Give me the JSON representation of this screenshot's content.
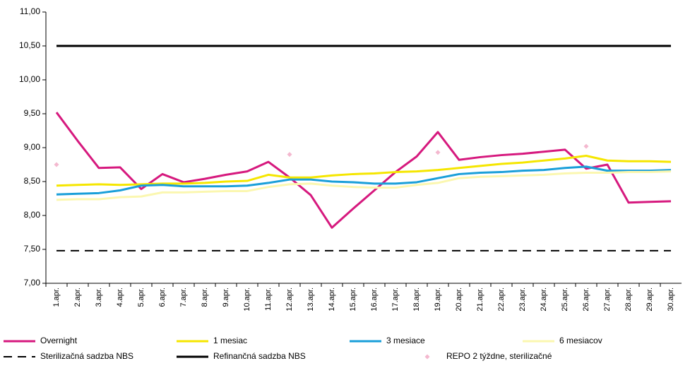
{
  "chart_data": {
    "type": "line",
    "categories": [
      "1.apr.",
      "2.apr.",
      "3.apr.",
      "4.apr.",
      "5.apr.",
      "6.apr.",
      "7.apr.",
      "8.apr.",
      "9.apr.",
      "10.apr.",
      "11.apr.",
      "12.apr.",
      "13.apr.",
      "14.apr.",
      "15.apr.",
      "16.apr.",
      "17.apr.",
      "18.apr.",
      "19.apr.",
      "20.apr.",
      "21.apr.",
      "22.apr.",
      "23.apr.",
      "24.apr.",
      "25.apr.",
      "26.apr.",
      "27.apr.",
      "28.apr.",
      "29.apr.",
      "30.apr."
    ],
    "ylim": [
      7,
      11
    ],
    "yticks": [
      {
        "value": 7,
        "label": "7,00"
      },
      {
        "value": 7.5,
        "label": "7,50"
      },
      {
        "value": 8,
        "label": "8,00"
      },
      {
        "value": 8.5,
        "label": "8,50"
      },
      {
        "value": 9,
        "label": "9,00"
      },
      {
        "value": 9.5,
        "label": "9,50"
      },
      {
        "value": 10,
        "label": "10,00"
      },
      {
        "value": 10.5,
        "label": "10,50"
      },
      {
        "value": 11,
        "label": "11,00"
      }
    ],
    "series": [
      {
        "name": "Overnight",
        "color": "#d6197e",
        "values": [
          9.52,
          9.1,
          8.7,
          8.71,
          8.39,
          8.61,
          8.49,
          8.54,
          8.6,
          8.65,
          8.79,
          8.56,
          8.3,
          7.82,
          8.1,
          8.37,
          8.64,
          8.87,
          9.23,
          8.82,
          8.86,
          8.89,
          8.91,
          8.94,
          8.97,
          8.69,
          8.75,
          8.19,
          8.2,
          8.21
        ]
      },
      {
        "name": "1 mesiac",
        "color": "#f5e600",
        "values": [
          8.44,
          8.45,
          8.46,
          8.45,
          8.46,
          8.47,
          8.47,
          8.48,
          8.5,
          8.51,
          8.6,
          8.56,
          8.56,
          8.59,
          8.61,
          8.62,
          8.64,
          8.65,
          8.67,
          8.7,
          8.73,
          8.76,
          8.78,
          8.81,
          8.84,
          8.88,
          8.81,
          8.8,
          8.8,
          8.79
        ]
      },
      {
        "name": "3 mesiace",
        "color": "#1a9fd9",
        "values": [
          8.31,
          8.32,
          8.33,
          8.37,
          8.44,
          8.45,
          8.43,
          8.43,
          8.43,
          8.44,
          8.48,
          8.53,
          8.53,
          8.5,
          8.49,
          8.47,
          8.47,
          8.49,
          8.55,
          8.61,
          8.63,
          8.64,
          8.66,
          8.67,
          8.7,
          8.72,
          8.66,
          8.66,
          8.66,
          8.67
        ]
      },
      {
        "name": "6 mesiacov",
        "color": "#fbf7b0",
        "values": [
          8.23,
          8.24,
          8.24,
          8.27,
          8.28,
          8.34,
          8.34,
          8.35,
          8.36,
          8.36,
          8.42,
          8.46,
          8.47,
          8.44,
          8.42,
          8.41,
          8.41,
          8.45,
          8.48,
          8.55,
          8.57,
          8.58,
          8.59,
          8.6,
          8.62,
          8.63,
          8.63,
          8.64,
          8.64,
          8.65
        ]
      },
      {
        "name": "Sterilizačná sadzba NBS",
        "color": "#000000",
        "dash": true,
        "values": [
          7.48,
          7.48,
          7.48,
          7.48,
          7.48,
          7.48,
          7.48,
          7.48,
          7.48,
          7.48,
          7.48,
          7.48,
          7.48,
          7.48,
          7.48,
          7.48,
          7.48,
          7.48,
          7.48,
          7.48,
          7.48,
          7.48,
          7.48,
          7.48,
          7.48,
          7.48,
          7.48,
          7.48,
          7.48,
          7.48
        ]
      },
      {
        "name": "Refinančná sadzba NBS",
        "color": "#000000",
        "values": [
          10.5,
          10.5,
          10.5,
          10.5,
          10.5,
          10.5,
          10.5,
          10.5,
          10.5,
          10.5,
          10.5,
          10.5,
          10.5,
          10.5,
          10.5,
          10.5,
          10.5,
          10.5,
          10.5,
          10.5,
          10.5,
          10.5,
          10.5,
          10.5,
          10.5,
          10.5,
          10.5,
          10.5,
          10.5,
          10.5
        ]
      },
      {
        "name": "REPO 2 týždne, sterilizačné",
        "color": "#f4b8cf",
        "marker": "diamond",
        "values": [
          8.75,
          null,
          null,
          null,
          null,
          null,
          null,
          null,
          null,
          null,
          null,
          8.9,
          null,
          null,
          null,
          null,
          null,
          null,
          8.93,
          null,
          null,
          null,
          null,
          null,
          null,
          9.02,
          null,
          null,
          null,
          null
        ]
      }
    ]
  }
}
